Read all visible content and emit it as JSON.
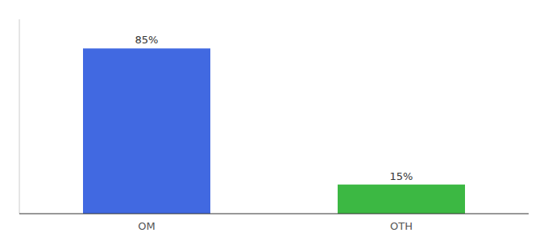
{
  "chart_data": {
    "type": "bar",
    "categories": [
      "OM",
      "OTH"
    ],
    "values": [
      85,
      15
    ],
    "value_labels": [
      "85%",
      "15%"
    ],
    "colors": [
      "#4169e1",
      "#3cb843"
    ],
    "ylim": [
      0,
      100
    ],
    "data_labels": true,
    "tick_labels": "x",
    "grid": false
  }
}
